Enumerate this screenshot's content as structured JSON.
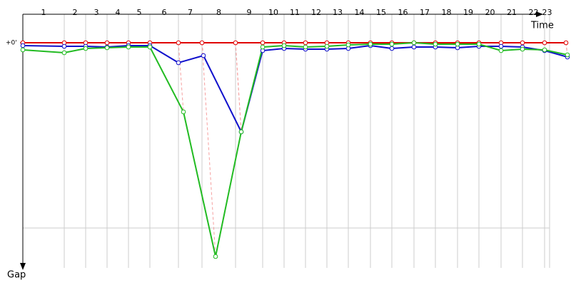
{
  "chart_data": {
    "type": "line",
    "x_label": "Time",
    "y_label": "Gap",
    "xlim": [
      0,
      768
    ],
    "ylim": [
      0,
      310
    ],
    "yticks": [
      {
        "value": 0,
        "label": "+0'"
      }
    ],
    "ygrid": [
      260
    ],
    "lap_labels": [
      "1",
      "2",
      "3",
      "4",
      "5",
      "6",
      "7",
      "8",
      "9",
      "10",
      "11",
      "12",
      "13",
      "14",
      "15",
      "16",
      "17",
      "18",
      "19",
      "20",
      "21",
      "22",
      "23"
    ],
    "lap_ends": [
      58,
      88,
      118,
      148,
      178,
      218,
      251,
      298,
      336,
      366,
      396,
      426,
      456,
      487,
      517,
      548,
      578,
      609,
      639,
      670,
      700,
      731,
      738
    ],
    "series": [
      {
        "color": "#e00000",
        "x": [
          0,
          58,
          88,
          118,
          148,
          178,
          218,
          251,
          298,
          336,
          366,
          396,
          426,
          456,
          487,
          517,
          548,
          578,
          609,
          639,
          670,
          700,
          731,
          761
        ],
        "values": [
          0,
          0,
          0,
          0,
          0,
          0,
          0,
          0,
          0,
          0,
          0,
          0,
          0,
          0,
          0,
          0,
          0,
          0,
          0,
          0,
          0,
          0,
          0,
          0
        ]
      },
      {
        "color": "#1010cc",
        "x": [
          0,
          58,
          88,
          118,
          148,
          178,
          218,
          253,
          306,
          336,
          366,
          396,
          426,
          456,
          487,
          517,
          548,
          578,
          609,
          639,
          670,
          700,
          731,
          763
        ],
        "values": [
          4,
          5,
          5,
          6,
          4,
          4,
          28,
          18,
          125,
          11,
          8,
          9,
          9,
          8,
          4,
          8,
          6,
          6,
          7,
          5,
          5,
          6,
          11,
          20
        ]
      },
      {
        "color": "#22bb22",
        "x": [
          0,
          58,
          88,
          118,
          148,
          178,
          225,
          270,
          306,
          336,
          366,
          396,
          426,
          456,
          487,
          517,
          548,
          578,
          609,
          639,
          670,
          700,
          731,
          763
        ],
        "values": [
          10,
          14,
          8,
          7,
          6,
          6,
          97,
          300,
          125,
          6,
          4,
          6,
          5,
          3,
          2,
          2,
          0,
          2,
          2,
          2,
          11,
          9,
          10,
          17
        ]
      }
    ]
  }
}
